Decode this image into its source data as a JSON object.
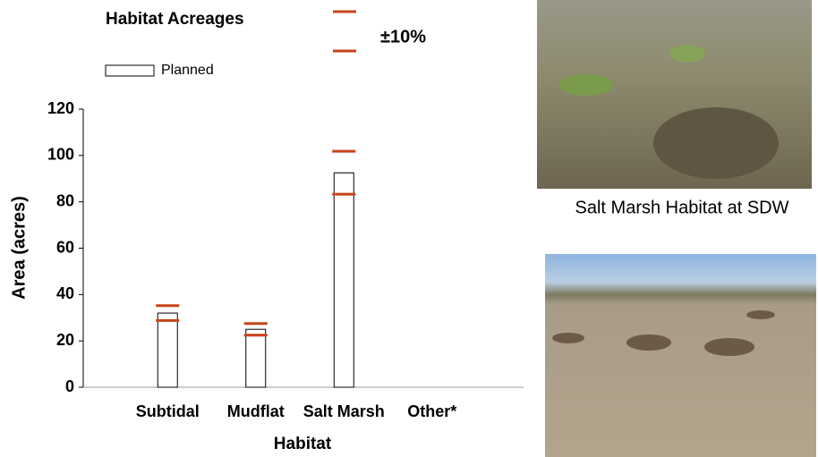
{
  "chart_data": {
    "type": "bar",
    "title": "Habitat Acreages",
    "x_label": "Habitat",
    "y_label": "Area (acres)",
    "categories": [
      "Subtidal",
      "Mudflat",
      "Salt Marsh",
      "Other*"
    ],
    "series": [
      {
        "name": "Planned",
        "color": "#ffffff",
        "values": [
          32,
          25,
          92.5,
          0
        ]
      }
    ],
    "range_name": "±10%",
    "range_color": "#c8431a",
    "range_low": [
      28.8,
      22.5,
      83.3,
      null
    ],
    "range_high": [
      35.2,
      27.5,
      101.8,
      null
    ],
    "ylim": [
      0,
      120
    ],
    "yticks": [
      0,
      20,
      40,
      60,
      80,
      100,
      120
    ]
  },
  "photos": [
    {
      "caption": "Salt Marsh Habitat at SDW"
    }
  ]
}
